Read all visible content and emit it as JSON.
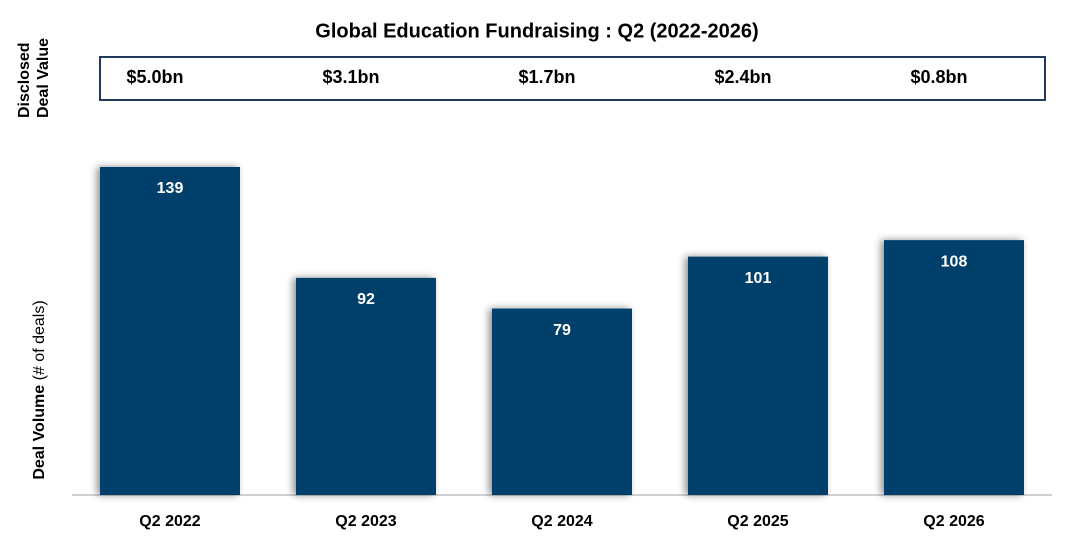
{
  "chart_data": {
    "type": "bar",
    "title": "Global Education Fundraising : Q2 (2022-2026)",
    "deal_value_label": [
      "Disclosed",
      "Deal Value"
    ],
    "deal_values": [
      "$5.0bn",
      "$3.1bn",
      "$1.7bn",
      "$2.4bn",
      "$0.8bn"
    ],
    "y_label": "Deal Volume",
    "y_label_note": "(# of deals)",
    "categories": [
      "Q2 2022",
      "Q2 2023",
      "Q2 2024",
      "Q2 2025",
      "Q2 2026"
    ],
    "values": [
      139,
      92,
      79,
      101,
      108
    ],
    "color": "#023f6b",
    "ylim": [
      0,
      150
    ]
  }
}
